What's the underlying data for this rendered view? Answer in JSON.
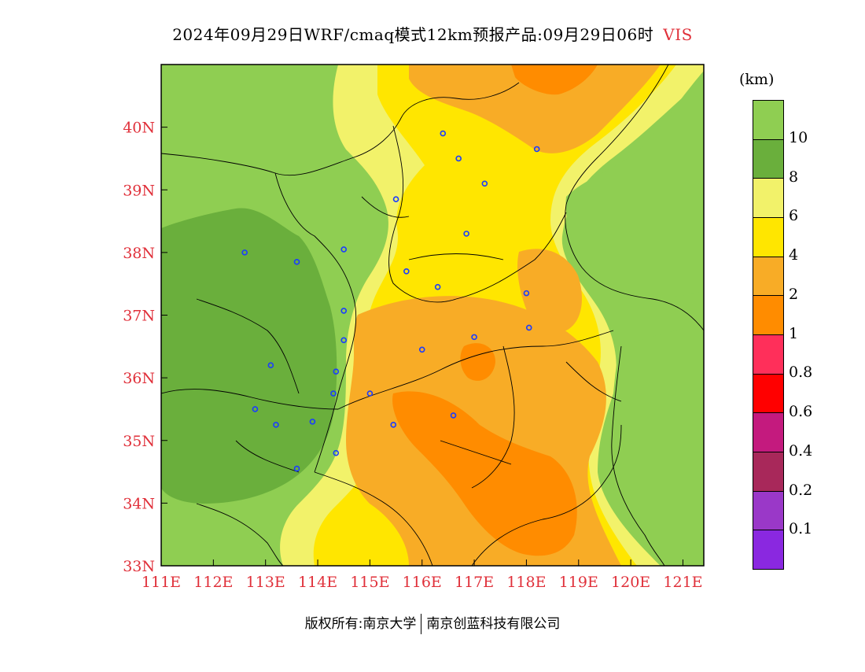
{
  "title": {
    "main": "2024年09月29日WRF/cmaq模式12km预报产品:09月29日06时",
    "variable": "VIS"
  },
  "axes": {
    "lon_labels": [
      "111E",
      "112E",
      "113E",
      "114E",
      "115E",
      "116E",
      "117E",
      "118E",
      "119E",
      "120E",
      "121E"
    ],
    "lon_values": [
      111,
      112,
      113,
      114,
      115,
      116,
      117,
      118,
      119,
      120,
      121
    ],
    "lat_labels": [
      "40N",
      "39N",
      "38N",
      "37N",
      "36N",
      "35N",
      "34N",
      "33N"
    ],
    "lat_values": [
      40,
      39,
      38,
      37,
      36,
      35,
      34,
      33
    ],
    "lon_range": [
      111,
      121.4
    ],
    "lat_range": [
      33,
      41
    ],
    "label_color": "#e0303a"
  },
  "legend": {
    "unit": "(km)",
    "labels": [
      "10",
      "8",
      "6",
      "4",
      "2",
      "1",
      "0.8",
      "0.6",
      "0.4",
      "0.2",
      "0.1"
    ],
    "colors": [
      "#8fce52",
      "#6aaf3c",
      "#f2f26a",
      "#ffe600",
      "#f8ac26",
      "#ff8c00",
      "#ff2f5a",
      "#ff0000",
      "#c41a7e",
      "#a8285a",
      "#9a38c8",
      "#8a28e0"
    ]
  },
  "colors": {
    "vis_gt10": "#8fce52",
    "vis_8_10": "#6aaf3c",
    "vis_6_8": "#f2f26a",
    "vis_4_6": "#ffe600",
    "vis_2_4": "#f8ac26",
    "vis_1_2": "#ff8c00",
    "station": "#1a3cff"
  },
  "stations": [
    {
      "lon": 116.4,
      "lat": 39.9
    },
    {
      "lon": 116.7,
      "lat": 39.5
    },
    {
      "lon": 118.2,
      "lat": 39.65
    },
    {
      "lon": 117.2,
      "lat": 39.1
    },
    {
      "lon": 115.5,
      "lat": 38.85
    },
    {
      "lon": 112.6,
      "lat": 38.0
    },
    {
      "lon": 113.6,
      "lat": 37.85
    },
    {
      "lon": 114.5,
      "lat": 38.05
    },
    {
      "lon": 116.85,
      "lat": 38.3
    },
    {
      "lon": 115.7,
      "lat": 37.7
    },
    {
      "lon": 116.3,
      "lat": 37.45
    },
    {
      "lon": 114.5,
      "lat": 37.07
    },
    {
      "lon": 118.0,
      "lat": 37.35
    },
    {
      "lon": 114.5,
      "lat": 36.6
    },
    {
      "lon": 117.0,
      "lat": 36.65
    },
    {
      "lon": 118.05,
      "lat": 36.8
    },
    {
      "lon": 116.0,
      "lat": 36.45
    },
    {
      "lon": 113.1,
      "lat": 36.2
    },
    {
      "lon": 114.35,
      "lat": 36.1
    },
    {
      "lon": 114.3,
      "lat": 35.75
    },
    {
      "lon": 115.0,
      "lat": 35.75
    },
    {
      "lon": 112.8,
      "lat": 35.5
    },
    {
      "lon": 113.9,
      "lat": 35.3
    },
    {
      "lon": 113.2,
      "lat": 35.25
    },
    {
      "lon": 115.45,
      "lat": 35.25
    },
    {
      "lon": 116.6,
      "lat": 35.4
    },
    {
      "lon": 114.35,
      "lat": 34.8
    },
    {
      "lon": 113.6,
      "lat": 34.55
    }
  ],
  "footer": {
    "left": "版权所有:南京大学",
    "right": "南京创蓝科技有限公司"
  }
}
